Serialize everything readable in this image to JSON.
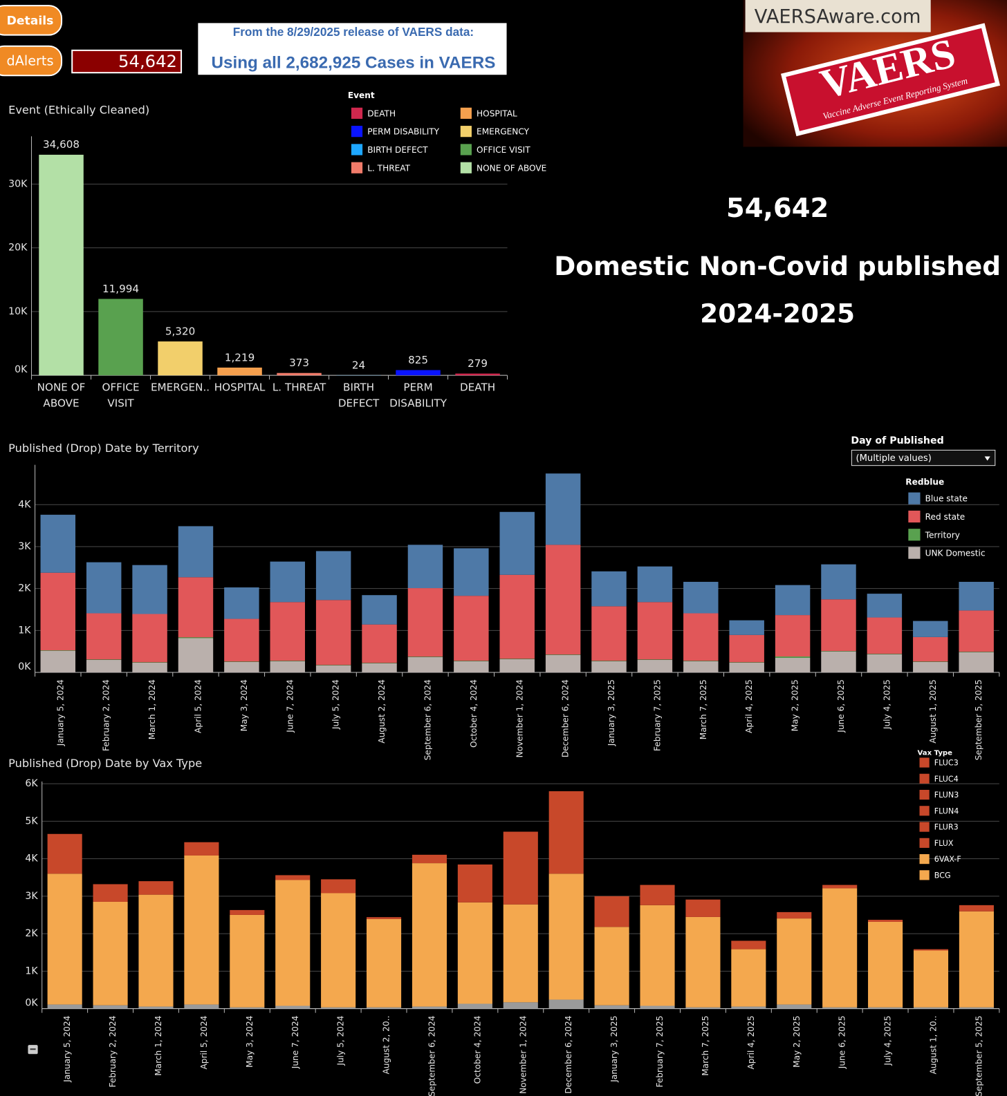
{
  "header": {
    "details_button": "Details",
    "alerts_button": "dAlerts",
    "alerts_count": "54,642",
    "release_note": "From the 8/29/2025 release of VAERS data:",
    "cases_note": "Using all 2,682,925 Cases in VAERS",
    "site": "VAERSAware.com",
    "logo_title": "VAERS",
    "logo_subtitle": "Vaccine Adverse Event Reporting System"
  },
  "summary": {
    "count": "54,642",
    "line1": "Domestic Non-Covid published",
    "line2": "2024-2025"
  },
  "filter": {
    "label": "Day of Published",
    "value": "(Multiple values)"
  },
  "chart_data": [
    {
      "type": "bar",
      "title": "Event (Ethically Cleaned)",
      "categories": [
        "NONE OF ABOVE",
        "OFFICE VISIT",
        "EMERGEN..",
        "HOSPITAL",
        "L. THREAT",
        "BIRTH DEFECT",
        "PERM DISABILITY",
        "DEATH"
      ],
      "values": [
        34608,
        11994,
        5320,
        1219,
        373,
        24,
        825,
        279
      ],
      "value_labels": [
        "34,608",
        "11,994",
        "5,320",
        "1,219",
        "373",
        "24",
        "825",
        "279"
      ],
      "colors": [
        "#b3e0a6",
        "#59a14f",
        "#f2cf6b",
        "#f5a04e",
        "#f07b6a",
        "#1ea7ff",
        "#0a14ff",
        "#d0284e"
      ],
      "ylim": [
        0,
        37500
      ],
      "yticks": [
        {
          "value": 0,
          "label": "0K"
        },
        {
          "value": 10000,
          "label": "10K"
        },
        {
          "value": 20000,
          "label": "20K"
        },
        {
          "value": 30000,
          "label": "30K"
        }
      ],
      "grid": true,
      "legend": {
        "title": "Event",
        "items": [
          {
            "name": "DEATH",
            "color": "#d0284e"
          },
          {
            "name": "PERM DISABILITY",
            "color": "#0a14ff"
          },
          {
            "name": "BIRTH DEFECT",
            "color": "#1ea7ff"
          },
          {
            "name": "L. THREAT",
            "color": "#f07b6a"
          },
          {
            "name": "HOSPITAL",
            "color": "#f5a04e"
          },
          {
            "name": "EMERGENCY",
            "color": "#f2cf6b"
          },
          {
            "name": "OFFICE VISIT",
            "color": "#59a14f"
          },
          {
            "name": "NONE OF ABOVE",
            "color": "#b3e0a6"
          }
        ]
      }
    },
    {
      "type": "stacked_bar",
      "title": "Published (Drop) Date by Territory",
      "stack": "reverse",
      "categories": [
        "January 5, 2024",
        "February 2, 2024",
        "March 1, 2024",
        "April 5, 2024",
        "May 3, 2024",
        "June 7, 2024",
        "July 5, 2024",
        "August 2, 2024",
        "September 6, 2024",
        "October 4, 2024",
        "November 1, 2024",
        "December 6, 2024",
        "January 3, 2025",
        "February 7, 2025",
        "March 7, 2025",
        "April 4, 2025",
        "May 2, 2025",
        "June 6, 2025",
        "July 4, 2025",
        "August 1, 2025",
        "September 5, 2025"
      ],
      "series": [
        {
          "name": "Blue state",
          "color": "#4e79a7",
          "values": [
            1383,
            1217,
            1167,
            1217,
            750,
            966,
            1166,
            700,
            1033,
            1133,
            1500,
            1700,
            833,
            850,
            750,
            350,
            716,
            834,
            567,
            384,
            683
          ]
        },
        {
          "name": "Red state",
          "color": "#e15759",
          "values": [
            1850,
            1100,
            1150,
            1433,
            1017,
            1400,
            1550,
            916,
            1633,
            1550,
            2000,
            2616,
            1300,
            1367,
            1133,
            650,
            987,
            1233,
            867,
            583,
            984
          ]
        },
        {
          "name": "Territory",
          "color": "#59a14f",
          "values": [
            10,
            10,
            10,
            20,
            10,
            10,
            10,
            10,
            10,
            10,
            10,
            10,
            10,
            10,
            10,
            10,
            30,
            10,
            10,
            10,
            10
          ]
        },
        {
          "name": "UNK Domestic",
          "color": "#bab0ac",
          "values": [
            517,
            300,
            233,
            817,
            250,
            267,
            167,
            217,
            367,
            267,
            317,
            417,
            267,
            300,
            267,
            233,
            350,
            500,
            433,
            250,
            483
          ]
        }
      ],
      "ylim": [
        0,
        4950
      ],
      "yticks": [
        {
          "value": 0,
          "label": "0K"
        },
        {
          "value": 1000,
          "label": "1K"
        },
        {
          "value": 2000,
          "label": "2K"
        },
        {
          "value": 3000,
          "label": "3K"
        },
        {
          "value": 4000,
          "label": "4K"
        }
      ],
      "grid": true,
      "legend": {
        "title": "Redblue"
      }
    },
    {
      "type": "stacked_bar",
      "title": "Published (Drop) Date by Vax Type",
      "stack": "forward",
      "categories": [
        "January 5, 2024",
        "February 2, 2024",
        "March 1, 2024",
        "April 5, 2024",
        "May 3, 2024",
        "June 7, 2024",
        "July 5, 2024",
        "August 2, 20..",
        "September 6, 2024",
        "October 4, 2024",
        "November 1, 2024",
        "December 6, 2024",
        "January 3, 2025",
        "February 7, 2025",
        "March 7, 2025",
        "April 4, 2025",
        "May 2, 2025",
        "June 6, 2025",
        "July 4, 2025",
        "August 1, 20..",
        "September 5, 2025"
      ],
      "series": [
        {
          "color": "#9a9a9a",
          "values": [
            110,
            90,
            55,
            110,
            35,
            75,
            35,
            35,
            55,
            130,
            170,
            240,
            90,
            75,
            35,
            55,
            110,
            35,
            35,
            35,
            35
          ]
        },
        {
          "color": "#f4a84e",
          "values": [
            3490,
            2760,
            2985,
            3975,
            2465,
            3355,
            3045,
            2355,
            3825,
            2705,
            2610,
            3360,
            2090,
            2685,
            2410,
            1530,
            2295,
            3175,
            2280,
            1515,
            2560
          ]
        },
        {
          "color": "#c8482a",
          "values": [
            1060,
            470,
            360,
            355,
            130,
            130,
            370,
            50,
            225,
            1010,
            1940,
            2200,
            820,
            540,
            465,
            225,
            170,
            90,
            55,
            35,
            165
          ]
        }
      ],
      "ylim": [
        0,
        6060
      ],
      "yticks": [
        {
          "value": 0,
          "label": "0K"
        },
        {
          "value": 1000,
          "label": "1K"
        },
        {
          "value": 2000,
          "label": "2K"
        },
        {
          "value": 3000,
          "label": "3K"
        },
        {
          "value": 4000,
          "label": "4K"
        },
        {
          "value": 5000,
          "label": "5K"
        },
        {
          "value": 6000,
          "label": "6K"
        }
      ],
      "grid": true,
      "legend": {
        "title": "Vax Type",
        "items": [
          {
            "name": "FLUC3",
            "color": "#c8482a"
          },
          {
            "name": "FLUC4",
            "color": "#c8482a"
          },
          {
            "name": "FLUN3",
            "color": "#c8482a"
          },
          {
            "name": "FLUN4",
            "color": "#c8482a"
          },
          {
            "name": "FLUR3",
            "color": "#c8482a"
          },
          {
            "name": "FLUX",
            "color": "#c8482a"
          },
          {
            "name": "6VAX-F",
            "color": "#f4a84e"
          },
          {
            "name": "BCG",
            "color": "#f4a84e"
          }
        ]
      }
    }
  ]
}
